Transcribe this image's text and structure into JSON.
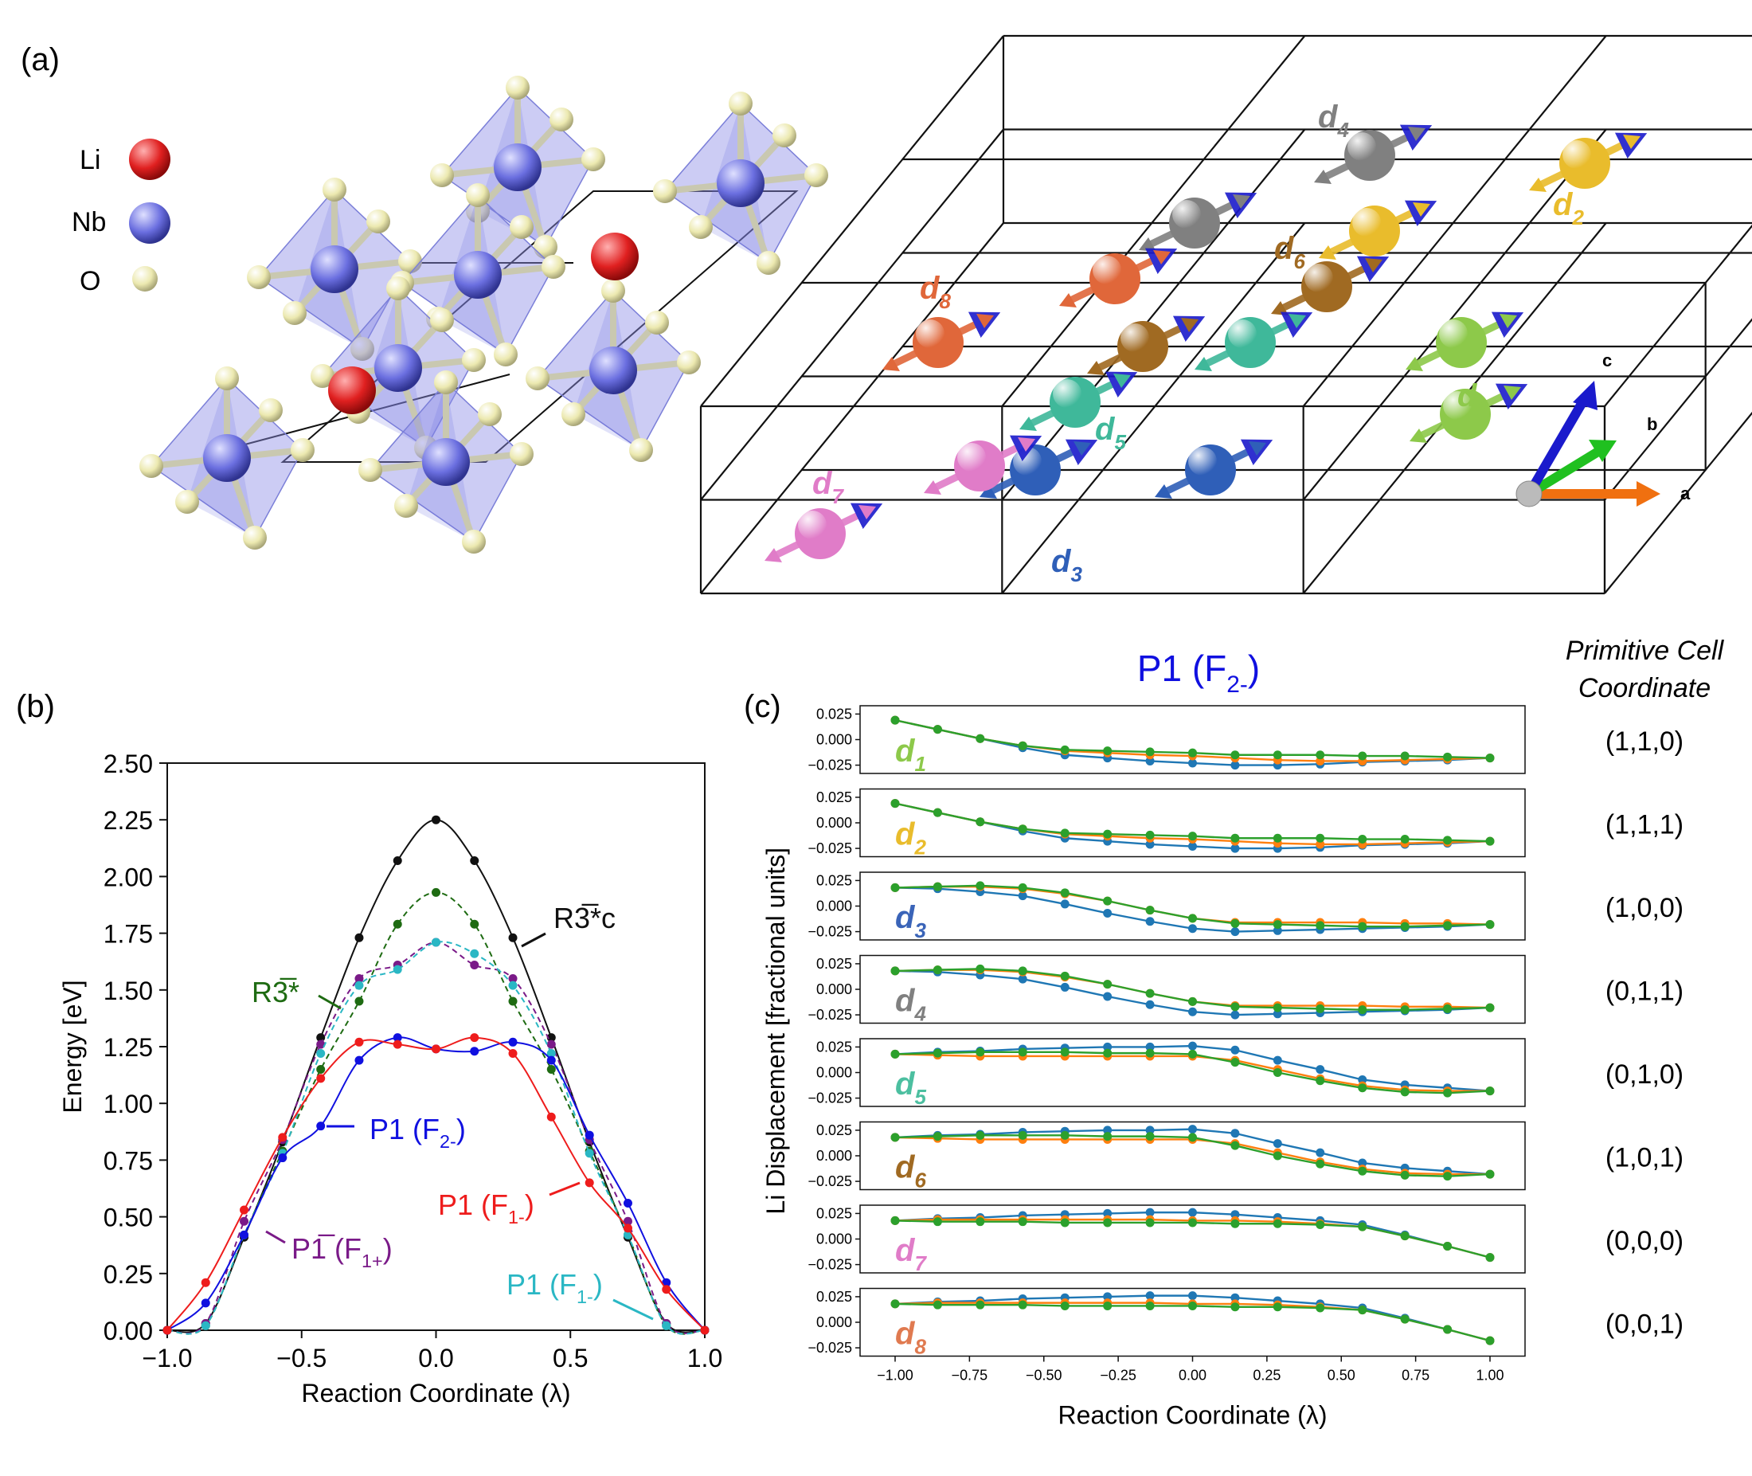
{
  "panel_labels": {
    "a": "(a)",
    "b": "(b)",
    "c": "(c)"
  },
  "legend_a": {
    "li": "Li",
    "nb": "Nb",
    "o": "O",
    "colors": {
      "li": "#e02020",
      "nb": "#6b6fe0",
      "o": "#ece9b0"
    }
  },
  "supercell": {
    "sites": [
      {
        "sub": "1",
        "color": "#8dc94a"
      },
      {
        "sub": "2",
        "color": "#e9bc2c"
      },
      {
        "sub": "3",
        "color": "#2f5fb8"
      },
      {
        "sub": "4",
        "color": "#808080"
      },
      {
        "sub": "5",
        "color": "#3fb89a"
      },
      {
        "sub": "6",
        "color": "#a06a22"
      },
      {
        "sub": "7",
        "color": "#e07cc8"
      },
      {
        "sub": "8",
        "color": "#e0673a"
      }
    ],
    "axes": {
      "a": "a",
      "b": "b",
      "c": "c"
    }
  },
  "chart_data": [
    {
      "type": "line",
      "title": "",
      "xlabel": "Reaction Coordinate (λ)",
      "ylabel": "Energy [eV]",
      "xlim": [
        -1.0,
        1.0
      ],
      "ylim": [
        0.0,
        2.5
      ],
      "xticks": [
        "−1.0",
        "−0.5",
        "0.0",
        "0.5",
        "1.0"
      ],
      "yticks": [
        "0.00",
        "0.25",
        "0.50",
        "0.75",
        "1.00",
        "1.25",
        "1.50",
        "1.75",
        "2.00",
        "2.25",
        "2.50"
      ],
      "x": [
        -1.0,
        -0.857,
        -0.714,
        -0.571,
        -0.429,
        -0.286,
        -0.143,
        0.0,
        0.143,
        0.286,
        0.429,
        0.571,
        0.714,
        0.857,
        1.0
      ],
      "series": [
        {
          "name": "R3̅*c",
          "label_main": "R3̅*c",
          "label_sub": "",
          "color": "#111111",
          "dashed": false,
          "values": [
            0.0,
            0.03,
            0.41,
            0.83,
            1.29,
            1.73,
            2.07,
            2.25,
            2.07,
            1.73,
            1.29,
            0.83,
            0.41,
            0.03,
            0.0
          ]
        },
        {
          "name": "R3̅*",
          "label_main": "R3̅*",
          "label_sub": "",
          "color": "#1e6b12",
          "dashed": true,
          "values": [
            0.0,
            0.02,
            0.42,
            0.79,
            1.15,
            1.45,
            1.79,
            1.93,
            1.79,
            1.45,
            1.15,
            0.79,
            0.42,
            0.02,
            0.0
          ]
        },
        {
          "name": "P1̅ (F1+)",
          "label_main": "P1̅ (F",
          "label_sub": "1+",
          "color": "#7a1a88",
          "dashed": true,
          "values": [
            0.0,
            0.03,
            0.48,
            0.84,
            1.26,
            1.55,
            1.61,
            1.71,
            1.61,
            1.55,
            1.26,
            0.84,
            0.48,
            0.03,
            0.0
          ]
        },
        {
          "name": "P1 (F1-) cyan",
          "label_main": "P1 (F",
          "label_sub": "1-",
          "color": "#2ab7c4",
          "dashed": true,
          "values": [
            0.0,
            0.02,
            0.42,
            0.78,
            1.22,
            1.52,
            1.59,
            1.71,
            1.66,
            1.52,
            1.22,
            0.78,
            0.42,
            0.02,
            0.0
          ]
        },
        {
          "name": "P1 (F2-)",
          "label_main": "P1 (F",
          "label_sub": "2-",
          "color": "#1010e0",
          "dashed": false,
          "values": [
            0.0,
            0.12,
            0.42,
            0.76,
            0.9,
            1.19,
            1.29,
            1.24,
            1.23,
            1.27,
            1.19,
            0.86,
            0.56,
            0.21,
            0.0
          ]
        },
        {
          "name": "P1 (F1-) red",
          "label_main": "P1 (F",
          "label_sub": "1-",
          "color": "#ee1c1c",
          "dashed": false,
          "values": [
            0.0,
            0.21,
            0.53,
            0.85,
            1.11,
            1.27,
            1.26,
            1.24,
            1.29,
            1.22,
            0.94,
            0.65,
            0.45,
            0.18,
            0.0
          ]
        }
      ]
    },
    {
      "type": "line",
      "title": "P1 (F2-)",
      "title_main": "P1 (F",
      "title_sub": "2-",
      "xlabel": "Reaction Coordinate (λ)",
      "ylabel": "Li Displacement [fractional units]",
      "xlim": [
        -1.0,
        1.0
      ],
      "ylim": [
        -0.03,
        0.03
      ],
      "xticks": [
        "−1.00",
        "−0.75",
        "−0.50",
        "−0.25",
        "0.00",
        "0.25",
        "0.50",
        "0.75",
        "1.00"
      ],
      "yticks": [
        "0.025",
        "0.000",
        "−0.025"
      ],
      "x": [
        -1.0,
        -0.857,
        -0.714,
        -0.571,
        -0.429,
        -0.286,
        -0.143,
        0.0,
        0.143,
        0.286,
        0.429,
        0.571,
        0.714,
        0.857,
        1.0
      ],
      "right_header": [
        "Primitive Cell",
        "Coordinate"
      ],
      "series_colors": [
        "#1f77b4",
        "#ff7f0e",
        "#2ca02c"
      ],
      "panels": [
        {
          "label": "d",
          "sub": "1",
          "color": "#8dc94a",
          "coord": "(1,1,0)",
          "series": [
            [
              0.019,
              0.01,
              0.001,
              -0.008,
              -0.015,
              -0.018,
              -0.021,
              -0.023,
              -0.025,
              -0.025,
              -0.024,
              -0.022,
              -0.021,
              -0.02,
              -0.018
            ],
            [
              0.019,
              0.01,
              0.001,
              -0.006,
              -0.011,
              -0.013,
              -0.015,
              -0.016,
              -0.018,
              -0.02,
              -0.021,
              -0.021,
              -0.02,
              -0.019,
              -0.018
            ],
            [
              0.019,
              0.01,
              0.001,
              -0.006,
              -0.01,
              -0.011,
              -0.012,
              -0.013,
              -0.015,
              -0.015,
              -0.015,
              -0.016,
              -0.016,
              -0.017,
              -0.018
            ]
          ]
        },
        {
          "label": "d",
          "sub": "2",
          "color": "#e9bc2c",
          "coord": "(1,1,1)",
          "series": [
            [
              0.019,
              0.01,
              0.001,
              -0.008,
              -0.015,
              -0.018,
              -0.021,
              -0.023,
              -0.025,
              -0.025,
              -0.024,
              -0.022,
              -0.021,
              -0.02,
              -0.018
            ],
            [
              0.019,
              0.01,
              0.001,
              -0.006,
              -0.011,
              -0.013,
              -0.015,
              -0.016,
              -0.018,
              -0.02,
              -0.021,
              -0.021,
              -0.02,
              -0.019,
              -0.018
            ],
            [
              0.019,
              0.01,
              0.001,
              -0.006,
              -0.01,
              -0.011,
              -0.012,
              -0.013,
              -0.015,
              -0.015,
              -0.015,
              -0.016,
              -0.016,
              -0.017,
              -0.018
            ]
          ]
        },
        {
          "label": "d",
          "sub": "3",
          "color": "#3a64b8",
          "coord": "(1,0,0)",
          "series": [
            [
              0.018,
              0.017,
              0.014,
              0.01,
              0.002,
              -0.007,
              -0.015,
              -0.022,
              -0.025,
              -0.024,
              -0.023,
              -0.022,
              -0.021,
              -0.02,
              -0.018
            ],
            [
              0.018,
              0.019,
              0.019,
              0.017,
              0.012,
              0.005,
              -0.004,
              -0.012,
              -0.016,
              -0.016,
              -0.016,
              -0.016,
              -0.017,
              -0.017,
              -0.018
            ],
            [
              0.018,
              0.019,
              0.02,
              0.018,
              0.013,
              0.005,
              -0.004,
              -0.012,
              -0.017,
              -0.018,
              -0.019,
              -0.02,
              -0.02,
              -0.019,
              -0.018
            ]
          ]
        },
        {
          "label": "d",
          "sub": "4",
          "color": "#808080",
          "coord": "(0,1,1)",
          "series": [
            [
              0.018,
              0.017,
              0.014,
              0.01,
              0.002,
              -0.007,
              -0.015,
              -0.022,
              -0.025,
              -0.024,
              -0.023,
              -0.022,
              -0.021,
              -0.02,
              -0.018
            ],
            [
              0.018,
              0.019,
              0.019,
              0.017,
              0.012,
              0.005,
              -0.004,
              -0.012,
              -0.016,
              -0.016,
              -0.016,
              -0.016,
              -0.017,
              -0.017,
              -0.018
            ],
            [
              0.018,
              0.019,
              0.02,
              0.018,
              0.013,
              0.005,
              -0.004,
              -0.012,
              -0.017,
              -0.018,
              -0.019,
              -0.02,
              -0.02,
              -0.019,
              -0.018
            ]
          ]
        },
        {
          "label": "d",
          "sub": "5",
          "color": "#4cbfa0",
          "coord": "(0,1,0)",
          "series": [
            [
              0.018,
              0.02,
              0.021,
              0.023,
              0.024,
              0.025,
              0.025,
              0.026,
              0.022,
              0.012,
              0.003,
              -0.007,
              -0.012,
              -0.015,
              -0.018
            ],
            [
              0.018,
              0.017,
              0.016,
              0.016,
              0.016,
              0.016,
              0.016,
              0.016,
              0.012,
              0.003,
              -0.006,
              -0.013,
              -0.017,
              -0.018,
              -0.018
            ],
            [
              0.018,
              0.019,
              0.02,
              0.02,
              0.02,
              0.019,
              0.019,
              0.018,
              0.01,
              0.0,
              -0.008,
              -0.015,
              -0.019,
              -0.02,
              -0.018
            ]
          ]
        },
        {
          "label": "d",
          "sub": "6",
          "color": "#a06a22",
          "coord": "(1,0,1)",
          "series": [
            [
              0.018,
              0.02,
              0.021,
              0.023,
              0.024,
              0.025,
              0.025,
              0.026,
              0.022,
              0.012,
              0.003,
              -0.007,
              -0.012,
              -0.015,
              -0.018
            ],
            [
              0.018,
              0.017,
              0.016,
              0.016,
              0.016,
              0.016,
              0.016,
              0.016,
              0.012,
              0.003,
              -0.006,
              -0.013,
              -0.017,
              -0.018,
              -0.018
            ],
            [
              0.018,
              0.019,
              0.02,
              0.02,
              0.02,
              0.019,
              0.019,
              0.018,
              0.01,
              0.0,
              -0.008,
              -0.015,
              -0.019,
              -0.02,
              -0.018
            ]
          ]
        },
        {
          "label": "d",
          "sub": "7",
          "color": "#e07cc8",
          "coord": "(0,0,0)",
          "series": [
            [
              0.018,
              0.02,
              0.021,
              0.023,
              0.024,
              0.025,
              0.026,
              0.026,
              0.024,
              0.021,
              0.018,
              0.014,
              0.004,
              -0.007,
              -0.018
            ],
            [
              0.018,
              0.019,
              0.019,
              0.019,
              0.019,
              0.019,
              0.019,
              0.018,
              0.018,
              0.017,
              0.015,
              0.012,
              0.003,
              -0.007,
              -0.018
            ],
            [
              0.018,
              0.017,
              0.017,
              0.017,
              0.016,
              0.016,
              0.016,
              0.016,
              0.015,
              0.015,
              0.014,
              0.012,
              0.003,
              -0.007,
              -0.018
            ]
          ]
        },
        {
          "label": "d",
          "sub": "8",
          "color": "#e07a50",
          "coord": "(0,0,1)",
          "series": [
            [
              0.018,
              0.02,
              0.021,
              0.023,
              0.024,
              0.025,
              0.026,
              0.026,
              0.024,
              0.021,
              0.018,
              0.014,
              0.004,
              -0.007,
              -0.018
            ],
            [
              0.018,
              0.019,
              0.019,
              0.019,
              0.019,
              0.019,
              0.019,
              0.018,
              0.018,
              0.017,
              0.015,
              0.012,
              0.003,
              -0.007,
              -0.018
            ],
            [
              0.018,
              0.017,
              0.017,
              0.017,
              0.016,
              0.016,
              0.016,
              0.016,
              0.015,
              0.015,
              0.014,
              0.012,
              0.003,
              -0.007,
              -0.018
            ]
          ]
        }
      ]
    }
  ]
}
